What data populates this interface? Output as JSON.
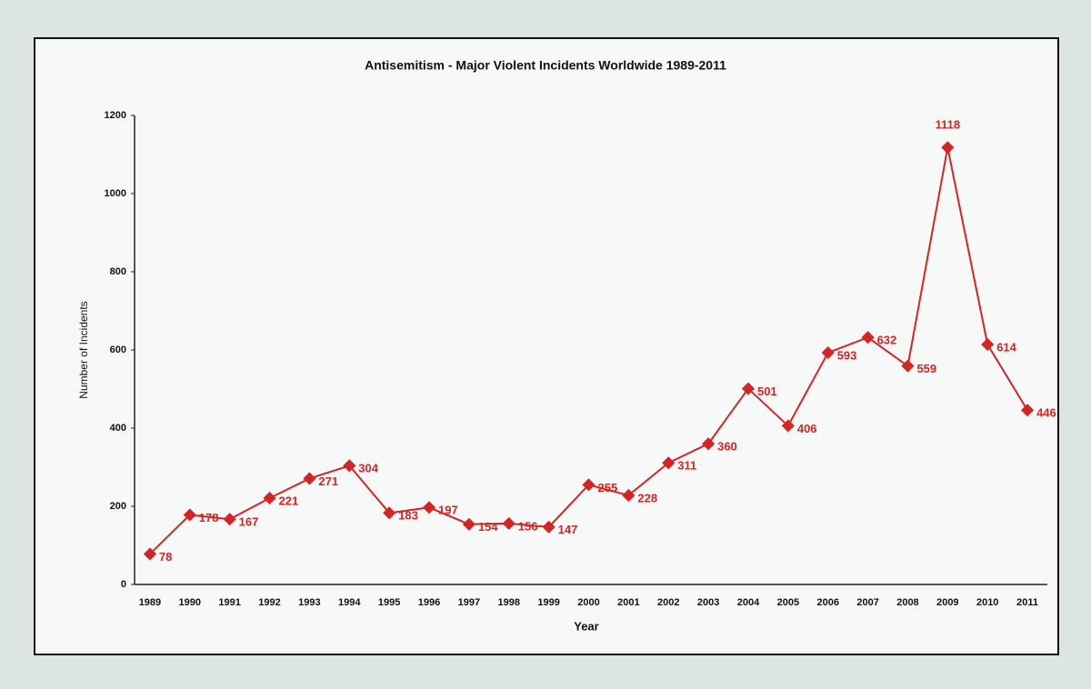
{
  "chart_data": {
    "type": "line",
    "title": "Antisemitism -  Major Violent Incidents Worldwide 1989-2011",
    "x_label": "Year",
    "y_label": "Number of Incidents",
    "categories": [
      "1989",
      "1990",
      "1991",
      "1992",
      "1993",
      "1994",
      "1995",
      "1996",
      "1997",
      "1998",
      "1999",
      "2000",
      "2001",
      "2002",
      "2003",
      "2004",
      "2005",
      "2006",
      "2007",
      "2008",
      "2009",
      "2010",
      "2011"
    ],
    "values": [
      78,
      178,
      167,
      221,
      271,
      304,
      183,
      197,
      154,
      156,
      147,
      255,
      228,
      311,
      360,
      501,
      406,
      593,
      632,
      559,
      1118,
      614,
      446
    ],
    "color": "#d42424",
    "ylim": [
      0,
      1200
    ],
    "yticks": [
      0,
      200,
      400,
      600,
      800,
      1000,
      1200
    ],
    "grid": false
  }
}
